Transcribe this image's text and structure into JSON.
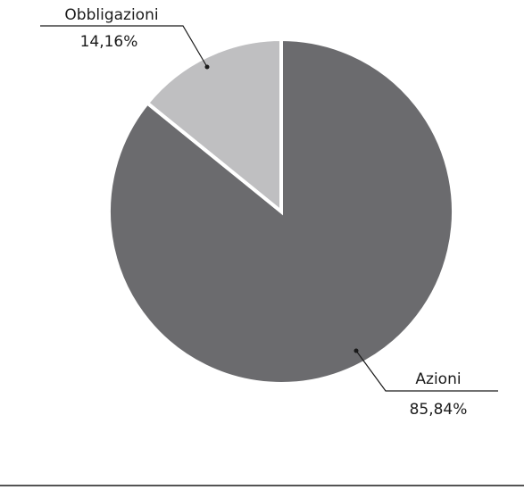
{
  "chart_data": {
    "type": "pie",
    "slices": [
      {
        "label": "Azioni",
        "value": 85.84,
        "value_label": "85,84%",
        "color": "#6b6b6e"
      },
      {
        "label": "Obbligazioni",
        "value": 14.16,
        "value_label": "14,16%",
        "color": "#bfbfc1"
      }
    ],
    "separator_color": "#ffffff",
    "title": "",
    "legend": "none"
  }
}
